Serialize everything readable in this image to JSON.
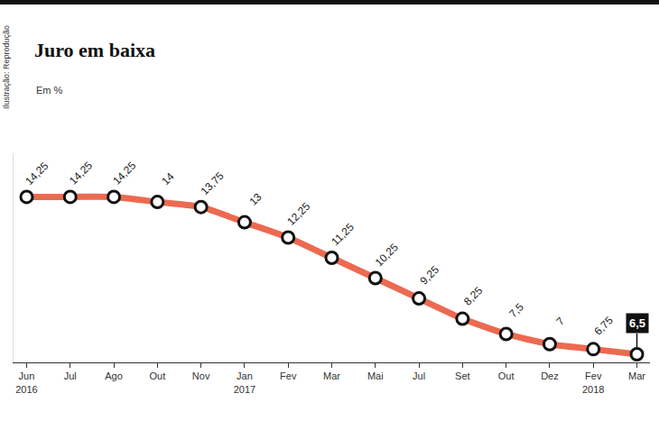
{
  "chart_data": {
    "type": "line",
    "title": "Juro em baixa",
    "subtitle": "Em %",
    "annotations": [
      "Ilustração: Reprodução"
    ],
    "categories": [
      "Jun 2016",
      "Jul",
      "Ago",
      "Out",
      "Nov",
      "Jan 2017",
      "Fev",
      "Mar",
      "Mai",
      "Jul",
      "Set",
      "Out",
      "Dez",
      "Fev 2018",
      "Mar"
    ],
    "values": [
      14.25,
      14.25,
      14.25,
      14,
      13.75,
      13,
      12.25,
      11.25,
      10.25,
      9.25,
      8.25,
      7.5,
      7,
      6.75,
      6.5
    ],
    "value_labels": [
      "14,25",
      "14,25",
      "14,25",
      "14",
      "13,75",
      "13",
      "12,25",
      "11,25",
      "10,25",
      "9,25",
      "8,25",
      "7,5",
      "7",
      "6,75",
      "6,5"
    ],
    "color": "#ec6a50",
    "marker": "circle",
    "ylim": [
      6.1,
      16.4
    ],
    "data_labels": true,
    "tick_labels": "x",
    "grid": false
  }
}
